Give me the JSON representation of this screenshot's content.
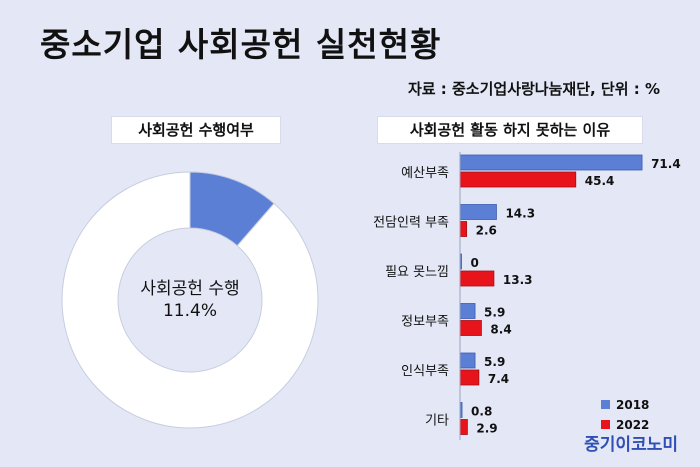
{
  "header": {
    "title": "중소기업 사회공헌 실천현황",
    "source": "자료 : 중소기업사랑나눔재단, 단위 : %"
  },
  "brand": "중기이코노미",
  "colors": {
    "series_2018": "#5a7fd4",
    "series_2022": "#e8141c",
    "donut_fill": "#5a7fd4",
    "donut_rest": "#ffffff"
  },
  "chart_data": [
    {
      "type": "pie",
      "title": "사회공헌 수행여부",
      "slices": [
        {
          "label": "사회공헌 수행",
          "value": 11.4
        },
        {
          "label": "",
          "value": 88.6
        }
      ],
      "center_label": "사회공헌 수행",
      "center_value": "11.4%"
    },
    {
      "type": "bar",
      "orientation": "horizontal",
      "title": "사회공헌 활동 하지 못하는 이유",
      "categories": [
        "예산부족",
        "전담인력 부족",
        "필요 못느낌",
        "정보부족",
        "인식부족",
        "기타"
      ],
      "series": [
        {
          "name": "2018",
          "values": [
            71.4,
            14.3,
            0,
            5.9,
            5.9,
            0.8
          ],
          "labels": [
            "71.4",
            "14.3",
            "0",
            "5.9",
            "5.9",
            "0.8"
          ]
        },
        {
          "name": "2022",
          "values": [
            45.4,
            2.6,
            13.3,
            8.4,
            7.4,
            2.9
          ],
          "labels": [
            "45.4",
            "2.6",
            "13.3",
            "8.4",
            "7.4",
            "2.9"
          ]
        }
      ],
      "legend_position": "bottom-right"
    }
  ]
}
